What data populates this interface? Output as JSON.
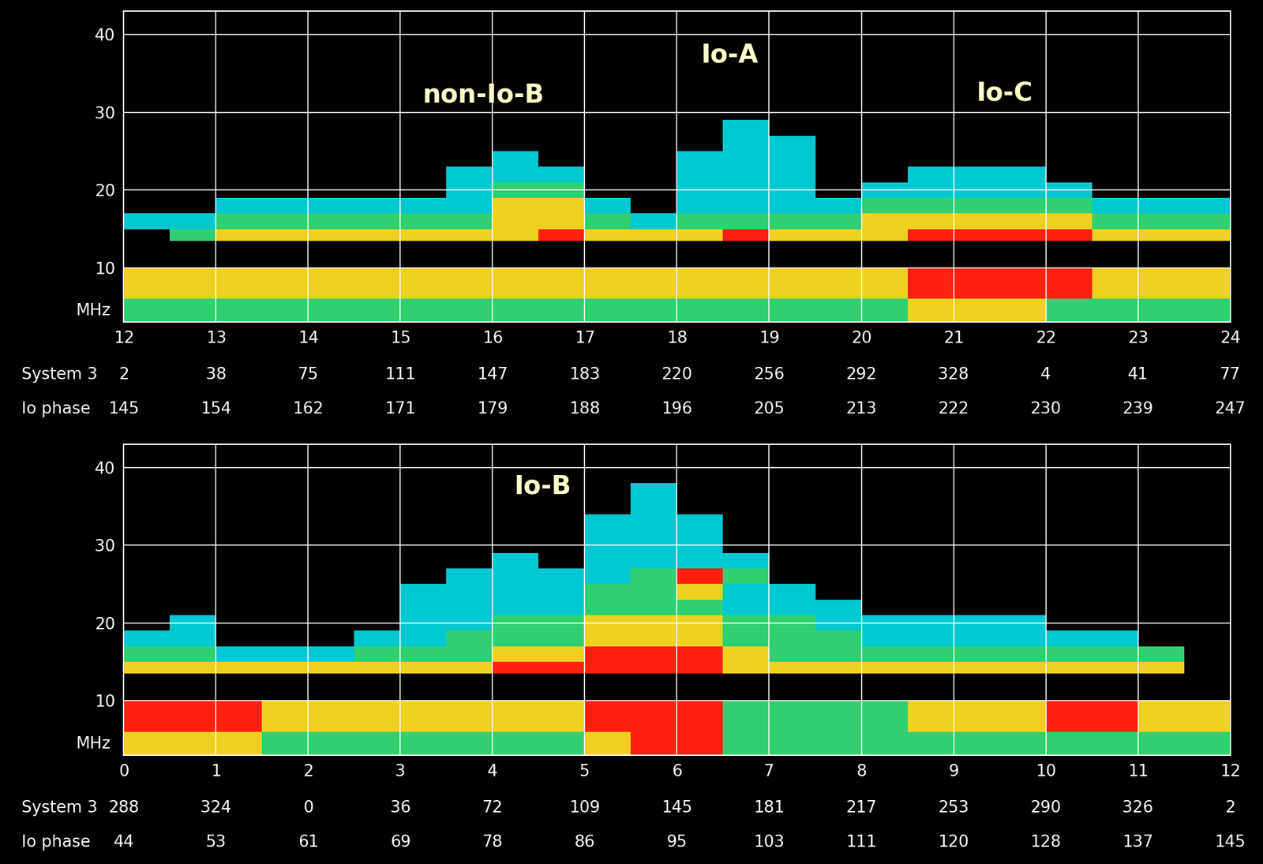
{
  "chart_data": [
    {
      "type": "heatmap",
      "grid": true,
      "xlim": [
        12,
        24
      ],
      "xticks": [
        12,
        13,
        14,
        15,
        16,
        17,
        18,
        19,
        20,
        21,
        22,
        23,
        24
      ],
      "ylim": [
        3,
        43
      ],
      "yticks": [
        10,
        20,
        30,
        40
      ],
      "y_label": "MHz",
      "tick_rows": [
        {
          "label": "System 3",
          "values": [
            2,
            38,
            75,
            111,
            147,
            183,
            220,
            256,
            292,
            328,
            4,
            41,
            77
          ]
        },
        {
          "label": "Io phase",
          "values": [
            145,
            154,
            162,
            171,
            179,
            188,
            196,
            205,
            213,
            222,
            230,
            239,
            247
          ]
        }
      ],
      "annotations": [
        {
          "text": "non-Io-B",
          "x": 15.9,
          "y": 32.2
        },
        {
          "text": "Io-A",
          "x": 18.57,
          "y": 37.4
        },
        {
          "text": "Io-C",
          "x": 21.55,
          "y": 32.4
        }
      ],
      "colors": [
        "#000000",
        "#00c8d2",
        "#30d070",
        "#f0d020",
        "#ff2010"
      ],
      "x_edges": [
        12,
        12.5,
        13,
        13.5,
        14,
        14.5,
        15,
        15.5,
        16,
        16.5,
        17,
        17.5,
        18,
        18.5,
        19,
        19.5,
        20,
        20.5,
        21,
        21.5,
        22,
        22.5,
        23,
        23.5,
        24
      ],
      "freq_edges": [
        3,
        6,
        10,
        13.5,
        15,
        17,
        19,
        21,
        23,
        25,
        27,
        29,
        31,
        34,
        38
      ],
      "cells": [
        [
          2,
          2,
          2,
          2,
          2,
          2,
          2,
          2,
          2,
          2,
          2,
          2,
          2,
          2,
          2,
          2,
          2,
          3,
          3,
          3,
          2,
          2,
          2,
          2
        ],
        [
          3,
          3,
          3,
          3,
          3,
          3,
          3,
          3,
          3,
          3,
          3,
          3,
          3,
          3,
          3,
          3,
          3,
          4,
          4,
          4,
          4,
          3,
          3,
          3
        ],
        [
          0,
          0,
          0,
          0,
          0,
          0,
          0,
          0,
          0,
          0,
          0,
          0,
          0,
          0,
          0,
          0,
          0,
          0,
          0,
          0,
          0,
          0,
          0,
          0
        ],
        [
          0,
          2,
          3,
          3,
          3,
          3,
          3,
          3,
          3,
          4,
          3,
          3,
          3,
          4,
          3,
          3,
          3,
          4,
          4,
          4,
          4,
          3,
          3,
          3
        ],
        [
          1,
          1,
          2,
          2,
          2,
          2,
          2,
          2,
          3,
          3,
          2,
          1,
          2,
          2,
          2,
          2,
          3,
          3,
          3,
          3,
          3,
          2,
          2,
          2
        ],
        [
          0,
          0,
          1,
          1,
          1,
          1,
          1,
          1,
          3,
          3,
          1,
          0,
          1,
          1,
          1,
          1,
          2,
          2,
          2,
          2,
          2,
          1,
          1,
          1
        ],
        [
          0,
          0,
          0,
          0,
          0,
          0,
          0,
          1,
          2,
          2,
          0,
          0,
          1,
          1,
          1,
          0,
          1,
          1,
          1,
          1,
          1,
          0,
          0,
          0
        ],
        [
          0,
          0,
          0,
          0,
          0,
          0,
          0,
          1,
          1,
          1,
          0,
          0,
          1,
          1,
          1,
          0,
          0,
          1,
          1,
          1,
          0,
          0,
          0,
          0
        ],
        [
          0,
          0,
          0,
          0,
          0,
          0,
          0,
          0,
          1,
          0,
          0,
          0,
          1,
          1,
          1,
          0,
          0,
          0,
          0,
          0,
          0,
          0,
          0,
          0
        ],
        [
          0,
          0,
          0,
          0,
          0,
          0,
          0,
          0,
          0,
          0,
          0,
          0,
          0,
          1,
          1,
          0,
          0,
          0,
          0,
          0,
          0,
          0,
          0,
          0
        ],
        [
          0,
          0,
          0,
          0,
          0,
          0,
          0,
          0,
          0,
          0,
          0,
          0,
          0,
          1,
          0,
          0,
          0,
          0,
          0,
          0,
          0,
          0,
          0,
          0
        ],
        [
          0,
          0,
          0,
          0,
          0,
          0,
          0,
          0,
          0,
          0,
          0,
          0,
          0,
          0,
          0,
          0,
          0,
          0,
          0,
          0,
          0,
          0,
          0,
          0
        ],
        [
          0,
          0,
          0,
          0,
          0,
          0,
          0,
          0,
          0,
          0,
          0,
          0,
          0,
          0,
          0,
          0,
          0,
          0,
          0,
          0,
          0,
          0,
          0,
          0
        ],
        [
          0,
          0,
          0,
          0,
          0,
          0,
          0,
          0,
          0,
          0,
          0,
          0,
          0,
          0,
          0,
          0,
          0,
          0,
          0,
          0,
          0,
          0,
          0,
          0
        ]
      ]
    },
    {
      "type": "heatmap",
      "grid": true,
      "xlim": [
        0,
        12
      ],
      "xticks": [
        0,
        1,
        2,
        3,
        4,
        5,
        6,
        7,
        8,
        9,
        10,
        11,
        12
      ],
      "ylim": [
        3,
        43
      ],
      "yticks": [
        10,
        20,
        30,
        40
      ],
      "y_label": "MHz",
      "tick_rows": [
        {
          "label": "System 3",
          "values": [
            288,
            324,
            0,
            36,
            72,
            109,
            145,
            181,
            217,
            253,
            290,
            326,
            2
          ]
        },
        {
          "label": "Io phase",
          "values": [
            44,
            53,
            61,
            69,
            78,
            86,
            95,
            103,
            111,
            120,
            128,
            137,
            145
          ]
        }
      ],
      "annotations": [
        {
          "text": "Io-B",
          "x": 4.54,
          "y": 37.6
        }
      ],
      "colors": [
        "#000000",
        "#00c8d2",
        "#30d070",
        "#f0d020",
        "#ff2010"
      ],
      "x_edges": [
        0,
        0.5,
        1,
        1.5,
        2,
        2.5,
        3,
        3.5,
        4,
        4.5,
        5,
        5.5,
        6,
        6.5,
        7,
        7.5,
        8,
        8.5,
        9,
        9.5,
        10,
        10.5,
        11,
        11.5,
        12
      ],
      "freq_edges": [
        3,
        6,
        10,
        13.5,
        15,
        17,
        19,
        21,
        23,
        25,
        27,
        29,
        31,
        34,
        38
      ],
      "cells": [
        [
          3,
          3,
          3,
          2,
          2,
          2,
          2,
          2,
          2,
          2,
          3,
          4,
          4,
          2,
          2,
          2,
          2,
          2,
          2,
          2,
          2,
          2,
          2,
          2
        ],
        [
          4,
          4,
          4,
          3,
          3,
          3,
          3,
          3,
          3,
          3,
          4,
          4,
          4,
          2,
          2,
          2,
          2,
          3,
          3,
          3,
          4,
          4,
          3,
          3
        ],
        [
          0,
          0,
          0,
          0,
          0,
          0,
          0,
          0,
          0,
          0,
          0,
          0,
          0,
          0,
          0,
          0,
          0,
          0,
          0,
          0,
          0,
          0,
          0,
          0
        ],
        [
          3,
          3,
          3,
          3,
          3,
          3,
          3,
          3,
          4,
          4,
          4,
          4,
          4,
          3,
          3,
          3,
          3,
          3,
          3,
          3,
          3,
          3,
          3,
          0
        ],
        [
          2,
          2,
          1,
          1,
          1,
          2,
          2,
          2,
          3,
          3,
          4,
          4,
          4,
          3,
          2,
          2,
          2,
          2,
          2,
          2,
          2,
          2,
          2,
          0
        ],
        [
          1,
          1,
          0,
          0,
          0,
          1,
          1,
          2,
          2,
          2,
          3,
          3,
          3,
          2,
          2,
          2,
          1,
          1,
          1,
          1,
          1,
          1,
          0,
          0
        ],
        [
          0,
          1,
          0,
          0,
          0,
          0,
          1,
          1,
          2,
          2,
          3,
          3,
          3,
          2,
          2,
          1,
          1,
          1,
          1,
          1,
          0,
          0,
          0,
          0
        ],
        [
          0,
          0,
          0,
          0,
          0,
          0,
          1,
          1,
          1,
          1,
          2,
          2,
          2,
          1,
          1,
          1,
          0,
          0,
          0,
          0,
          0,
          0,
          0,
          0
        ],
        [
          0,
          0,
          0,
          0,
          0,
          0,
          1,
          1,
          1,
          1,
          2,
          2,
          3,
          1,
          1,
          0,
          0,
          0,
          0,
          0,
          0,
          0,
          0,
          0
        ],
        [
          0,
          0,
          0,
          0,
          0,
          0,
          0,
          1,
          1,
          1,
          1,
          2,
          4,
          2,
          0,
          0,
          0,
          0,
          0,
          0,
          0,
          0,
          0,
          0
        ],
        [
          0,
          0,
          0,
          0,
          0,
          0,
          0,
          0,
          1,
          0,
          1,
          1,
          1,
          1,
          0,
          0,
          0,
          0,
          0,
          0,
          0,
          0,
          0,
          0
        ],
        [
          0,
          0,
          0,
          0,
          0,
          0,
          0,
          0,
          0,
          0,
          1,
          1,
          1,
          0,
          0,
          0,
          0,
          0,
          0,
          0,
          0,
          0,
          0,
          0
        ],
        [
          0,
          0,
          0,
          0,
          0,
          0,
          0,
          0,
          0,
          0,
          1,
          1,
          1,
          0,
          0,
          0,
          0,
          0,
          0,
          0,
          0,
          0,
          0,
          0
        ],
        [
          0,
          0,
          0,
          0,
          0,
          0,
          0,
          0,
          0,
          0,
          0,
          1,
          0,
          0,
          0,
          0,
          0,
          0,
          0,
          0,
          0,
          0,
          0,
          0
        ]
      ]
    }
  ]
}
